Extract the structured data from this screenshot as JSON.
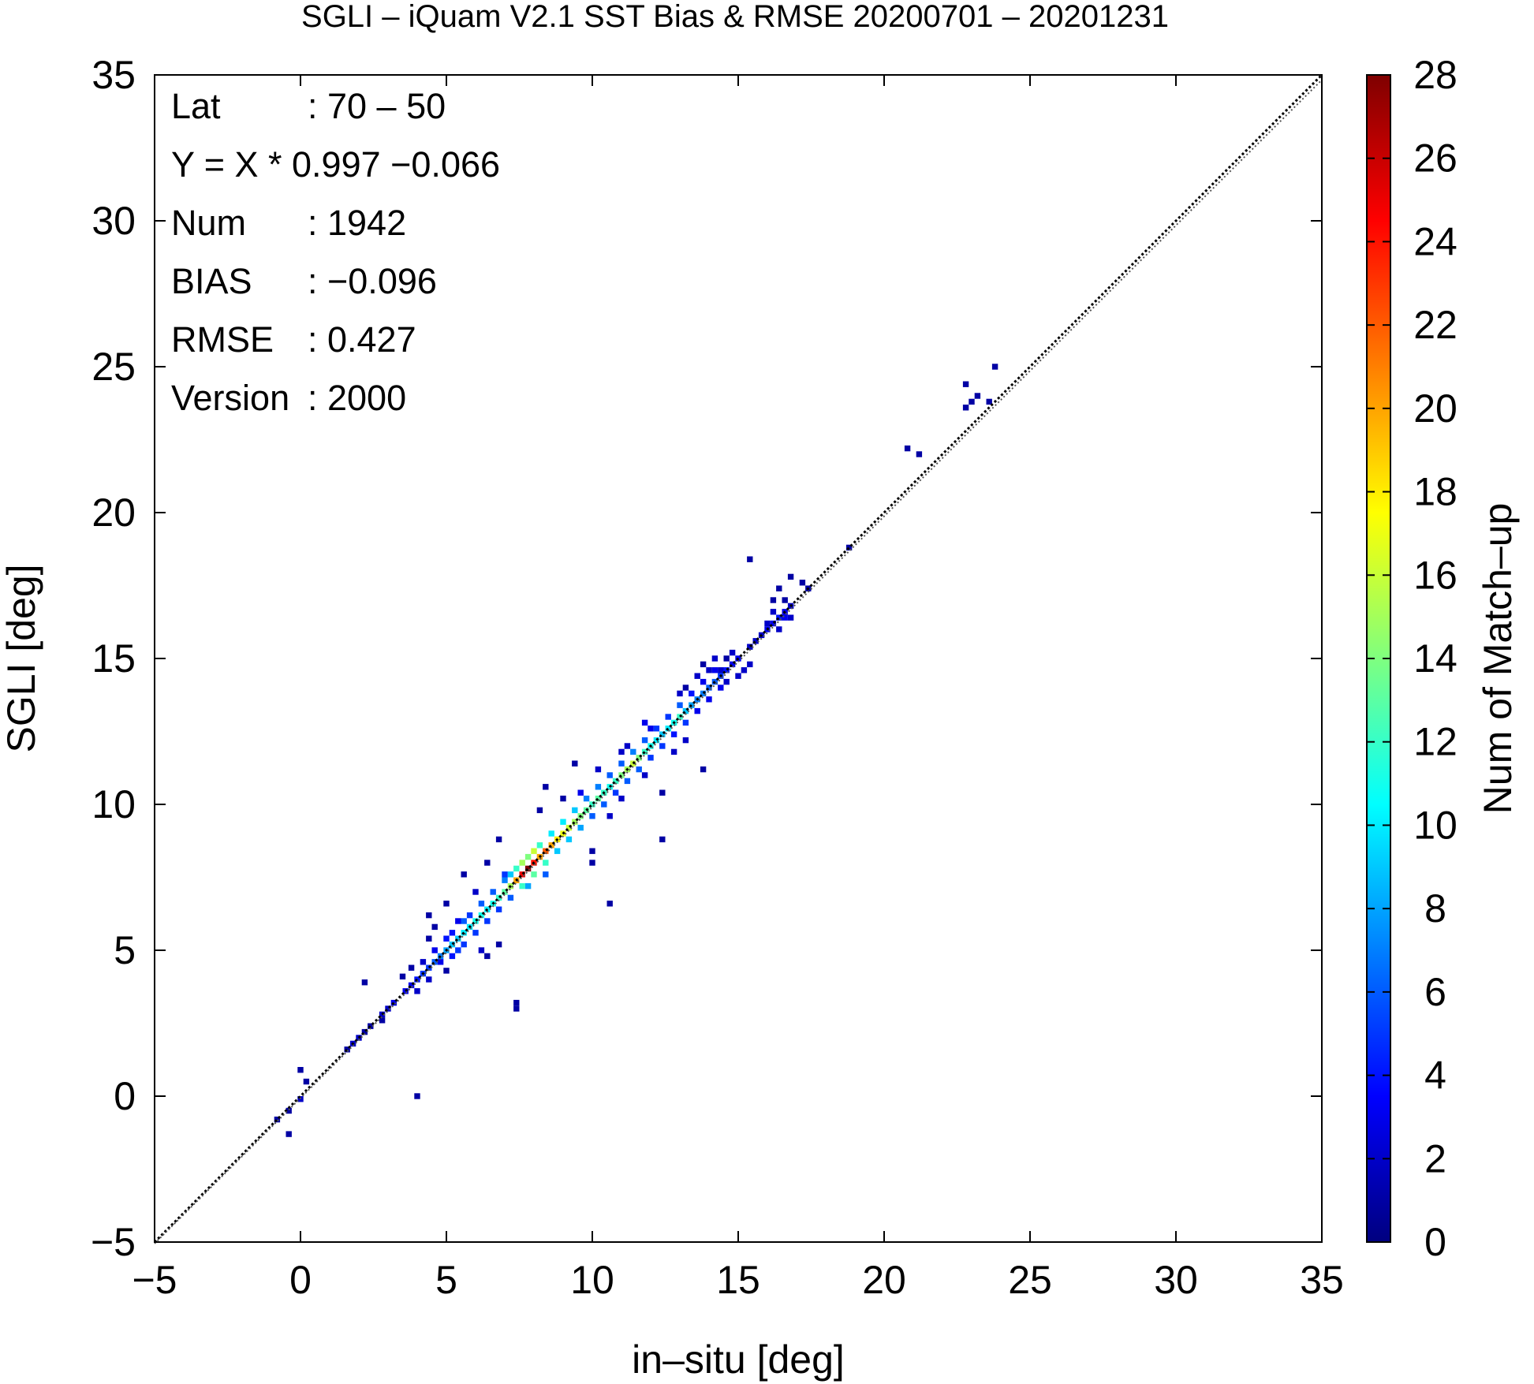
{
  "chart_data": {
    "type": "heatmap",
    "title": "SGLI – iQuam V2.1 SST Bias & RMSE 20200701 – 20201231",
    "xlabel": "in–situ [deg]",
    "ylabel": "SGLI [deg]",
    "colorbar_label": "Num of Match–up",
    "xlim": [
      -5,
      35
    ],
    "ylim": [
      -5,
      35
    ],
    "x_ticks": [
      "−5",
      "0",
      "5",
      "10",
      "15",
      "20",
      "25",
      "30",
      "35"
    ],
    "y_ticks": [
      "−5",
      "0",
      "5",
      "10",
      "15",
      "20",
      "25",
      "30",
      "35"
    ],
    "colorbar_range": [
      0,
      28
    ],
    "colorbar_ticks": [
      "0",
      "2",
      "4",
      "6",
      "8",
      "10",
      "12",
      "14",
      "16",
      "18",
      "20",
      "22",
      "24",
      "26",
      "28"
    ],
    "colormap": [
      "#00007f",
      "#0000ff",
      "#007fff",
      "#00ffff",
      "#7fff7f",
      "#ffff00",
      "#ff7f00",
      "#ff0000",
      "#7f0000"
    ],
    "reference_line": "Y = X (dotted)",
    "grid": false,
    "stats": [
      {
        "key": "Lat",
        "value": ": 70 – 50"
      },
      {
        "key": "Y = X * 0.997 −0.066",
        "value": ""
      },
      {
        "key": "Num",
        "value": ": 1942"
      },
      {
        "key": "BIAS",
        "value": ": −0.096"
      },
      {
        "key": "RMSE",
        "value": ": 0.427"
      },
      {
        "key": "Version",
        "value": ": 2000"
      }
    ],
    "regression": {
      "slope": 0.997,
      "intercept": -0.066
    },
    "bin_size": 0.2,
    "cells": [
      [
        -0.8,
        -0.8,
        1
      ],
      [
        -0.4,
        -0.5,
        1
      ],
      [
        -0.4,
        -1.3,
        1
      ],
      [
        0.0,
        -0.1,
        2
      ],
      [
        0.0,
        0.9,
        1
      ],
      [
        0.2,
        0.5,
        1
      ],
      [
        1.6,
        1.6,
        1
      ],
      [
        1.8,
        1.8,
        2
      ],
      [
        2.0,
        2.0,
        2
      ],
      [
        2.2,
        2.2,
        1
      ],
      [
        2.4,
        2.4,
        1
      ],
      [
        2.2,
        3.9,
        1
      ],
      [
        2.8,
        2.8,
        2
      ],
      [
        3.0,
        3.0,
        2
      ],
      [
        3.2,
        3.2,
        3
      ],
      [
        2.8,
        2.6,
        1
      ],
      [
        3.5,
        4.1,
        1
      ],
      [
        3.6,
        3.6,
        3
      ],
      [
        3.8,
        3.8,
        3
      ],
      [
        4.0,
        4.0,
        4
      ],
      [
        4.2,
        4.2,
        5
      ],
      [
        4.4,
        4.4,
        5
      ],
      [
        4.6,
        4.6,
        6
      ],
      [
        4.0,
        3.6,
        2
      ],
      [
        4.4,
        4.0,
        2
      ],
      [
        4.2,
        4.6,
        2
      ],
      [
        4.6,
        5.0,
        3
      ],
      [
        3.8,
        4.4,
        1
      ],
      [
        4.8,
        4.6,
        3
      ],
      [
        4.4,
        5.4,
        1
      ],
      [
        4.4,
        6.2,
        1
      ],
      [
        4.6,
        5.8,
        1
      ],
      [
        5.0,
        4.3,
        1
      ],
      [
        4.0,
        0.0,
        1
      ],
      [
        4.8,
        4.8,
        7
      ],
      [
        5.0,
        5.0,
        8
      ],
      [
        5.2,
        5.2,
        9
      ],
      [
        5.4,
        5.4,
        9
      ],
      [
        5.6,
        5.6,
        10
      ],
      [
        5.8,
        5.8,
        10
      ],
      [
        5.0,
        5.4,
        4
      ],
      [
        5.2,
        5.6,
        4
      ],
      [
        5.4,
        5.0,
        5
      ],
      [
        5.6,
        5.2,
        5
      ],
      [
        5.8,
        6.2,
        5
      ],
      [
        5.2,
        4.8,
        4
      ],
      [
        5.6,
        6.0,
        6
      ],
      [
        6.0,
        5.6,
        5
      ],
      [
        5.4,
        6.0,
        3
      ],
      [
        6.2,
        5.0,
        2
      ],
      [
        5.0,
        6.6,
        1
      ],
      [
        6.4,
        4.8,
        1
      ],
      [
        6.8,
        5.2,
        1
      ],
      [
        6.0,
        6.0,
        11
      ],
      [
        6.2,
        6.2,
        11
      ],
      [
        6.4,
        6.4,
        10
      ],
      [
        6.6,
        6.6,
        11
      ],
      [
        6.8,
        6.8,
        12
      ],
      [
        7.0,
        7.0,
        13
      ],
      [
        6.2,
        6.6,
        6
      ],
      [
        6.4,
        6.0,
        5
      ],
      [
        6.6,
        7.0,
        6
      ],
      [
        6.8,
        6.4,
        5
      ],
      [
        7.0,
        7.4,
        7
      ],
      [
        7.2,
        6.8,
        6
      ],
      [
        5.6,
        7.6,
        1
      ],
      [
        6.0,
        7.0,
        2
      ],
      [
        6.4,
        8.0,
        1
      ],
      [
        6.8,
        8.8,
        1
      ],
      [
        7.4,
        3.0,
        1
      ],
      [
        7.4,
        3.2,
        1
      ],
      [
        7.2,
        7.2,
        15
      ],
      [
        7.4,
        7.4,
        20
      ],
      [
        7.6,
        7.6,
        25
      ],
      [
        7.8,
        7.8,
        28
      ],
      [
        8.0,
        8.0,
        24
      ],
      [
        8.2,
        8.2,
        20
      ],
      [
        7.4,
        7.8,
        12
      ],
      [
        7.6,
        7.2,
        12
      ],
      [
        7.8,
        8.2,
        14
      ],
      [
        8.0,
        7.6,
        13
      ],
      [
        8.2,
        8.6,
        12
      ],
      [
        7.6,
        8.0,
        15
      ],
      [
        8.0,
        8.4,
        16
      ],
      [
        8.4,
        8.0,
        12
      ],
      [
        7.2,
        7.6,
        9
      ],
      [
        7.0,
        7.6,
        5
      ],
      [
        8.4,
        7.6,
        6
      ],
      [
        7.8,
        7.2,
        8
      ],
      [
        8.4,
        8.4,
        22
      ],
      [
        8.6,
        8.6,
        20
      ],
      [
        8.8,
        8.8,
        18
      ],
      [
        9.0,
        9.0,
        17
      ],
      [
        9.2,
        9.2,
        16
      ],
      [
        9.4,
        9.4,
        15
      ],
      [
        8.6,
        9.0,
        10
      ],
      [
        8.8,
        8.4,
        9
      ],
      [
        9.0,
        9.4,
        10
      ],
      [
        9.2,
        8.8,
        9
      ],
      [
        9.4,
        9.8,
        9
      ],
      [
        9.6,
        9.2,
        8
      ],
      [
        8.4,
        10.6,
        1
      ],
      [
        8.2,
        9.8,
        1
      ],
      [
        9.0,
        10.2,
        1
      ],
      [
        9.4,
        11.4,
        1
      ],
      [
        10.0,
        8.0,
        1
      ],
      [
        10.6,
        6.6,
        1
      ],
      [
        9.6,
        9.6,
        14
      ],
      [
        9.8,
        9.8,
        13
      ],
      [
        10.0,
        10.0,
        12
      ],
      [
        10.2,
        10.2,
        13
      ],
      [
        10.4,
        10.4,
        12
      ],
      [
        10.6,
        10.6,
        11
      ],
      [
        9.8,
        10.2,
        7
      ],
      [
        10.0,
        9.6,
        6
      ],
      [
        10.2,
        10.6,
        7
      ],
      [
        10.4,
        10.0,
        6
      ],
      [
        10.6,
        11.0,
        6
      ],
      [
        10.8,
        10.4,
        5
      ],
      [
        10.2,
        11.2,
        2
      ],
      [
        10.6,
        9.6,
        2
      ],
      [
        11.0,
        10.2,
        2
      ],
      [
        9.6,
        10.4,
        3
      ],
      [
        10.0,
        8.4,
        1
      ],
      [
        10.8,
        10.8,
        12
      ],
      [
        11.0,
        11.0,
        14
      ],
      [
        11.2,
        11.2,
        15
      ],
      [
        11.4,
        11.4,
        16
      ],
      [
        11.6,
        11.6,
        14
      ],
      [
        11.8,
        11.8,
        12
      ],
      [
        11.0,
        11.4,
        6
      ],
      [
        11.2,
        10.8,
        6
      ],
      [
        11.4,
        11.8,
        7
      ],
      [
        11.6,
        11.2,
        6
      ],
      [
        11.8,
        12.2,
        6
      ],
      [
        12.0,
        11.6,
        5
      ],
      [
        11.0,
        11.8,
        2
      ],
      [
        11.8,
        11.0,
        2
      ],
      [
        12.4,
        10.4,
        1
      ],
      [
        12.4,
        8.8,
        1
      ],
      [
        11.2,
        12.0,
        2
      ],
      [
        12.0,
        12.0,
        11
      ],
      [
        12.2,
        12.2,
        10
      ],
      [
        12.4,
        12.4,
        9
      ],
      [
        12.6,
        12.6,
        10
      ],
      [
        12.8,
        12.8,
        11
      ],
      [
        13.0,
        13.0,
        12
      ],
      [
        12.2,
        12.6,
        5
      ],
      [
        12.4,
        12.0,
        5
      ],
      [
        12.6,
        13.0,
        5
      ],
      [
        12.8,
        12.4,
        4
      ],
      [
        13.0,
        13.4,
        6
      ],
      [
        13.2,
        12.8,
        5
      ],
      [
        11.8,
        12.8,
        3
      ],
      [
        12.0,
        12.6,
        3
      ],
      [
        12.8,
        11.8,
        2
      ],
      [
        13.2,
        12.2,
        2
      ],
      [
        13.0,
        13.8,
        2
      ],
      [
        13.2,
        13.2,
        9
      ],
      [
        13.4,
        13.4,
        8
      ],
      [
        13.6,
        13.6,
        7
      ],
      [
        13.8,
        13.8,
        7
      ],
      [
        14.0,
        14.0,
        6
      ],
      [
        14.2,
        14.2,
        6
      ],
      [
        13.4,
        13.8,
        4
      ],
      [
        13.6,
        13.2,
        3
      ],
      [
        13.8,
        14.2,
        3
      ],
      [
        14.0,
        13.6,
        3
      ],
      [
        14.2,
        14.6,
        3
      ],
      [
        14.4,
        14.0,
        3
      ],
      [
        13.6,
        14.4,
        2
      ],
      [
        14.0,
        14.6,
        2
      ],
      [
        13.8,
        14.8,
        1
      ],
      [
        14.4,
        14.6,
        2
      ],
      [
        14.6,
        14.2,
        2
      ],
      [
        13.2,
        14.0,
        1
      ],
      [
        14.4,
        14.4,
        5
      ],
      [
        14.6,
        14.6,
        4
      ],
      [
        14.8,
        14.8,
        3
      ],
      [
        15.0,
        15.0,
        3
      ],
      [
        15.2,
        14.6,
        2
      ],
      [
        14.8,
        15.2,
        2
      ],
      [
        14.2,
        15.0,
        2
      ],
      [
        14.6,
        15.0,
        1
      ],
      [
        15.0,
        14.4,
        2
      ],
      [
        15.4,
        14.8,
        2
      ],
      [
        15.4,
        15.4,
        2
      ],
      [
        13.8,
        11.2,
        1
      ],
      [
        15.6,
        15.6,
        2
      ],
      [
        15.8,
        15.8,
        2
      ],
      [
        16.0,
        16.0,
        3
      ],
      [
        16.2,
        16.2,
        3
      ],
      [
        16.4,
        16.4,
        4
      ],
      [
        16.6,
        16.6,
        3
      ],
      [
        16.0,
        16.2,
        2
      ],
      [
        16.2,
        16.6,
        2
      ],
      [
        16.4,
        16.0,
        2
      ],
      [
        16.8,
        16.4,
        2
      ],
      [
        16.6,
        16.4,
        3
      ],
      [
        16.8,
        16.8,
        2
      ],
      [
        16.2,
        17.0,
        1
      ],
      [
        16.6,
        17.0,
        1
      ],
      [
        16.8,
        17.8,
        1
      ],
      [
        17.2,
        17.6,
        1
      ],
      [
        17.4,
        17.4,
        1
      ],
      [
        16.4,
        17.4,
        1
      ],
      [
        15.4,
        18.4,
        1
      ],
      [
        18.8,
        18.8,
        1
      ],
      [
        20.8,
        22.2,
        1
      ],
      [
        21.2,
        22.0,
        1
      ],
      [
        22.8,
        23.6,
        1
      ],
      [
        23.0,
        23.8,
        1
      ],
      [
        23.2,
        24.0,
        1
      ],
      [
        22.8,
        24.4,
        1
      ],
      [
        23.6,
        23.8,
        1
      ],
      [
        23.8,
        25.0,
        1
      ]
    ]
  }
}
